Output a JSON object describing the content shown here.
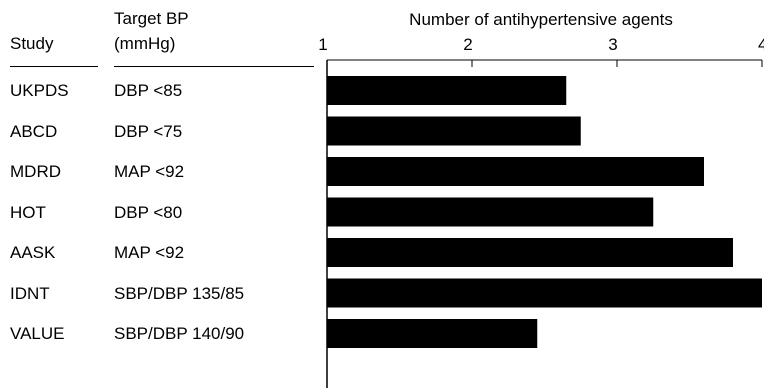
{
  "header": {
    "study_label": "Study",
    "target_label_line1": "Target BP",
    "target_label_line2": "(mmHg)"
  },
  "chart_data": {
    "type": "bar",
    "orientation": "horizontal",
    "title": "Number of antihypertensive agents",
    "categories": [
      "UKPDS",
      "ABCD",
      "MDRD",
      "HOT",
      "AASK",
      "IDNT",
      "VALUE"
    ],
    "targets": [
      "DBP <85",
      "DBP <75",
      "MAP <92",
      "DBP <80",
      "MAP <92",
      "SBP/DBP 135/85",
      "SBP/DBP 140/90"
    ],
    "values": [
      2.65,
      2.75,
      3.6,
      3.25,
      3.8,
      4.0,
      2.45
    ],
    "xlim": [
      1,
      4
    ],
    "xticks": [
      1,
      2,
      3,
      4
    ],
    "xtick_labels": [
      "1",
      "2",
      "3",
      "4"
    ],
    "axis_position": "top",
    "bar_color": "#000000",
    "grid": false,
    "legend": "none"
  }
}
